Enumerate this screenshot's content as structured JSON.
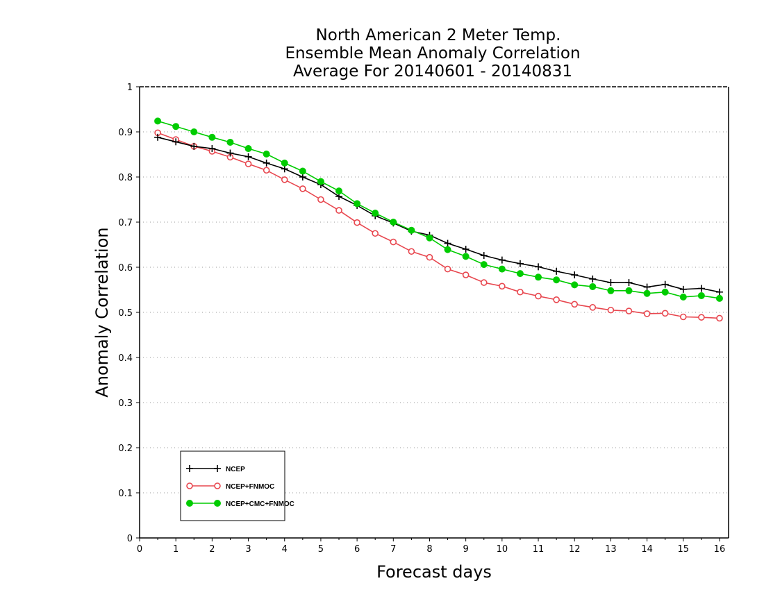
{
  "chart_data": {
    "type": "line",
    "title": [
      "North American 2 Meter Temp.",
      "Ensemble Mean Anomaly Correlation",
      "Average For 20140601 - 20140831"
    ],
    "xlabel": "Forecast days",
    "ylabel": "Anomaly Correlation",
    "xlim": [
      0,
      16.25
    ],
    "ylim": [
      0,
      1
    ],
    "x_ticks": [
      "0",
      "1",
      "2",
      "3",
      "4",
      "5",
      "6",
      "7",
      "8",
      "9",
      "10",
      "11",
      "12",
      "13",
      "14",
      "15",
      "16"
    ],
    "y_ticks": [
      "0",
      "0.1",
      "0.2",
      "0.3",
      "0.4",
      "0.5",
      "0.6",
      "0.7",
      "0.8",
      "0.9",
      "1"
    ],
    "grid": "horizontal-dotted",
    "legend_position": "bottom-left",
    "x": [
      0.5,
      1,
      1.5,
      2,
      2.5,
      3,
      3.5,
      4,
      4.5,
      5,
      5.5,
      6,
      6.5,
      7,
      7.5,
      8,
      8.5,
      9,
      9.5,
      10,
      10.5,
      11,
      11.5,
      12,
      12.5,
      13,
      13.5,
      14,
      14.5,
      15,
      15.5,
      16
    ],
    "series": [
      {
        "name": "NCEP",
        "color": "#000000",
        "marker": "plus",
        "values": [
          0.888,
          0.878,
          0.868,
          0.863,
          0.853,
          0.845,
          0.831,
          0.818,
          0.8,
          0.783,
          0.757,
          0.737,
          0.714,
          0.698,
          0.68,
          0.671,
          0.653,
          0.64,
          0.626,
          0.616,
          0.608,
          0.601,
          0.591,
          0.583,
          0.574,
          0.566,
          0.566,
          0.556,
          0.562,
          0.551,
          0.553,
          0.545
        ]
      },
      {
        "name": "NCEP+FNMOC",
        "color": "#e8474f",
        "marker": "open-circle",
        "values": [
          0.898,
          0.883,
          0.868,
          0.857,
          0.844,
          0.829,
          0.815,
          0.794,
          0.774,
          0.75,
          0.726,
          0.699,
          0.675,
          0.656,
          0.635,
          0.622,
          0.596,
          0.583,
          0.566,
          0.558,
          0.545,
          0.536,
          0.528,
          0.518,
          0.511,
          0.505,
          0.503,
          0.497,
          0.498,
          0.49,
          0.489,
          0.487
        ]
      },
      {
        "name": "NCEP+CMC+FNMOC",
        "color": "#00cc00",
        "marker": "filled-circle",
        "values": [
          0.924,
          0.912,
          0.9,
          0.888,
          0.877,
          0.863,
          0.851,
          0.831,
          0.813,
          0.79,
          0.769,
          0.741,
          0.72,
          0.7,
          0.682,
          0.665,
          0.639,
          0.624,
          0.606,
          0.596,
          0.586,
          0.578,
          0.572,
          0.561,
          0.557,
          0.548,
          0.548,
          0.542,
          0.545,
          0.534,
          0.537,
          0.531
        ]
      }
    ]
  }
}
